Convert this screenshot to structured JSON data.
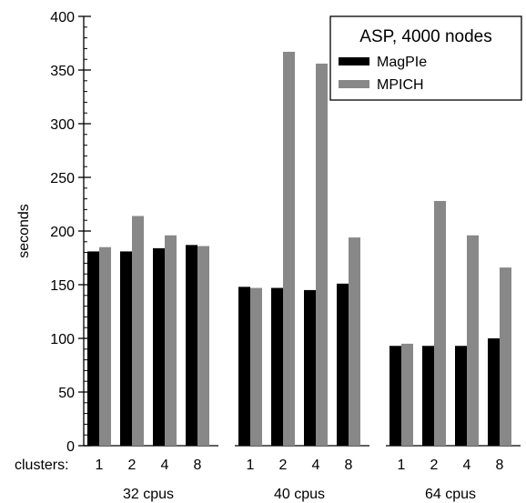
{
  "chart_data": {
    "type": "bar",
    "title": "ASP, 4000 nodes",
    "ylabel": "seconds",
    "xlabel_prefix": "clusters:",
    "ylim": [
      0,
      400
    ],
    "yticks": [
      0,
      50,
      100,
      150,
      200,
      250,
      300,
      350,
      400
    ],
    "y_minor_step": 10,
    "legend_position": "top-right",
    "groups": [
      {
        "label": "32 cpus",
        "clusters": [
          "1",
          "2",
          "4",
          "8"
        ]
      },
      {
        "label": "40 cpus",
        "clusters": [
          "1",
          "2",
          "4",
          "8"
        ]
      },
      {
        "label": "64 cpus",
        "clusters": [
          "1",
          "2",
          "4",
          "8"
        ]
      }
    ],
    "series": [
      {
        "name": "MagPIe",
        "color": "#000000",
        "values": [
          [
            181,
            181,
            184,
            187
          ],
          [
            148,
            147,
            145,
            151
          ],
          [
            93,
            93,
            93,
            100
          ]
        ]
      },
      {
        "name": "MPICH",
        "color": "#888888",
        "values": [
          [
            185,
            214,
            196,
            186
          ],
          [
            147,
            367,
            356,
            194
          ],
          [
            95,
            228,
            196,
            166
          ]
        ]
      }
    ]
  }
}
